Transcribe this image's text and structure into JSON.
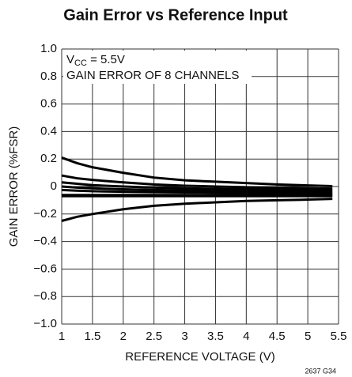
{
  "chart_data": {
    "type": "line",
    "title": "Gain Error vs Reference Input",
    "xlabel": "REFERENCE VOLTAGE (V)",
    "ylabel": "GAIN ERROR (%FSR)",
    "annotation": {
      "main": "V",
      "sub": "CC",
      "rest": " = 5.5V",
      "line2": "GAIN ERROR OF 8 CHANNELS"
    },
    "footnote": "2637 G34",
    "x": [
      1,
      1.25,
      1.5,
      2,
      2.5,
      3,
      3.5,
      4,
      4.5,
      5,
      5.4
    ],
    "series": [
      {
        "color": "#000000",
        "values": [
          0.21,
          0.17,
          0.14,
          0.1,
          0.065,
          0.045,
          0.035,
          0.025,
          0.015,
          0.008,
          0.003
        ]
      },
      {
        "color": "#000000",
        "values": [
          0.08,
          0.06,
          0.048,
          0.03,
          0.015,
          0.006,
          0.0,
          -0.005,
          -0.01,
          -0.013,
          -0.015
        ]
      },
      {
        "color": "#000000",
        "values": [
          0.03,
          0.02,
          0.01,
          0.0,
          -0.008,
          -0.013,
          -0.017,
          -0.02,
          -0.023,
          -0.026,
          -0.028
        ]
      },
      {
        "color": "#000000",
        "values": [
          0.0,
          -0.008,
          -0.013,
          -0.02,
          -0.025,
          -0.028,
          -0.031,
          -0.034,
          -0.036,
          -0.038,
          -0.04
        ]
      },
      {
        "color": "#000000",
        "values": [
          -0.025,
          -0.03,
          -0.034,
          -0.038,
          -0.041,
          -0.043,
          -0.045,
          -0.047,
          -0.049,
          -0.05,
          -0.052
        ]
      },
      {
        "color": "#000000",
        "values": [
          -0.062,
          -0.062,
          -0.062,
          -0.062,
          -0.062,
          -0.062,
          -0.062,
          -0.062,
          -0.062,
          -0.062,
          -0.062
        ]
      },
      {
        "color": "#000000",
        "values": [
          -0.07,
          -0.07,
          -0.07,
          -0.07,
          -0.07,
          -0.07,
          -0.07,
          -0.07,
          -0.07,
          -0.07,
          -0.07
        ]
      },
      {
        "color": "#000000",
        "values": [
          -0.25,
          -0.22,
          -0.2,
          -0.165,
          -0.14,
          -0.125,
          -0.115,
          -0.105,
          -0.1,
          -0.095,
          -0.09
        ]
      }
    ],
    "xlim": [
      1,
      5.5
    ],
    "ylim": [
      -1,
      1
    ],
    "xticks": [
      1,
      1.5,
      2,
      2.5,
      3,
      3.5,
      4,
      4.5,
      5,
      5.5
    ],
    "yticks": [
      {
        "value": -1,
        "label": "−1.0"
      },
      {
        "value": -0.8,
        "label": "−0.8"
      },
      {
        "value": -0.6,
        "label": "−0.6"
      },
      {
        "value": -0.4,
        "label": "−0.4"
      },
      {
        "value": -0.2,
        "label": "−0.2"
      },
      0,
      0.2,
      0.4,
      0.6,
      0.8,
      {
        "value": 1,
        "label": "1.0"
      }
    ],
    "grid": true
  }
}
